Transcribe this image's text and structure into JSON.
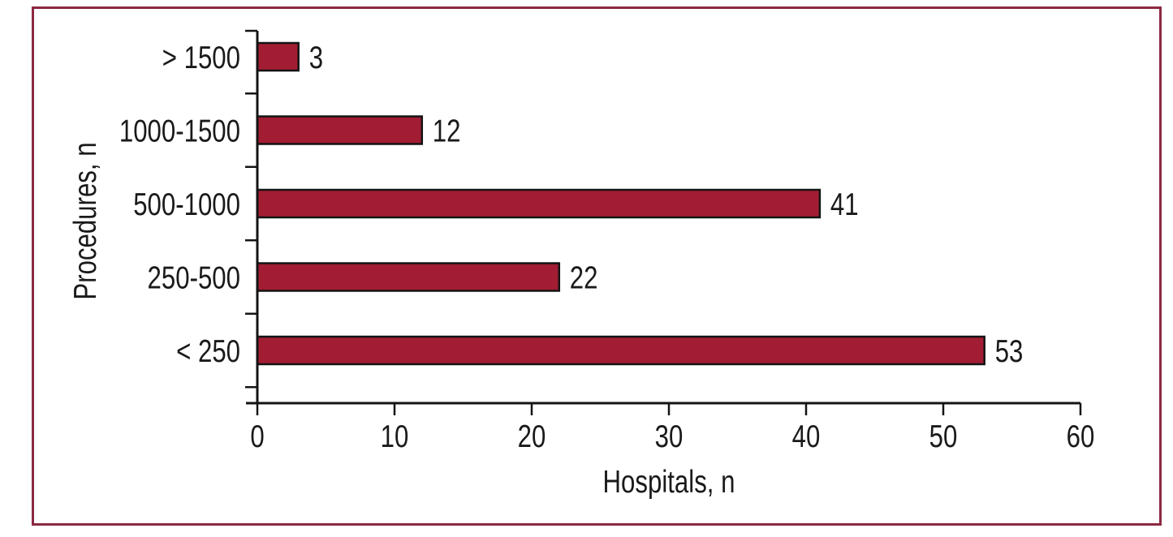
{
  "figure": {
    "background": "#FFFFFF",
    "frame_color": "#8B2942"
  },
  "chart_data": {
    "type": "bar",
    "orientation": "horizontal",
    "title": "",
    "categories": [
      "> 1500",
      "1000-1500",
      "500-1000",
      "250-500",
      "< 250"
    ],
    "values": [
      3,
      12,
      41,
      22,
      53
    ],
    "data_labels": [
      "3",
      "12",
      "41",
      "22",
      "53"
    ],
    "xlabel": "Hospitals, n",
    "ylabel": "Procedures, n",
    "xlim": [
      0,
      60
    ],
    "x_ticks": [
      "0",
      "10",
      "20",
      "30",
      "40",
      "50",
      "60"
    ],
    "x_tick_values": [
      0,
      10,
      20,
      30,
      40,
      50,
      60
    ],
    "grid": false,
    "legend": false,
    "bar_fill": "#A21D33",
    "bar_stroke": "#141414",
    "axis_color": "#141414",
    "label_color": "#1A1A1A"
  }
}
